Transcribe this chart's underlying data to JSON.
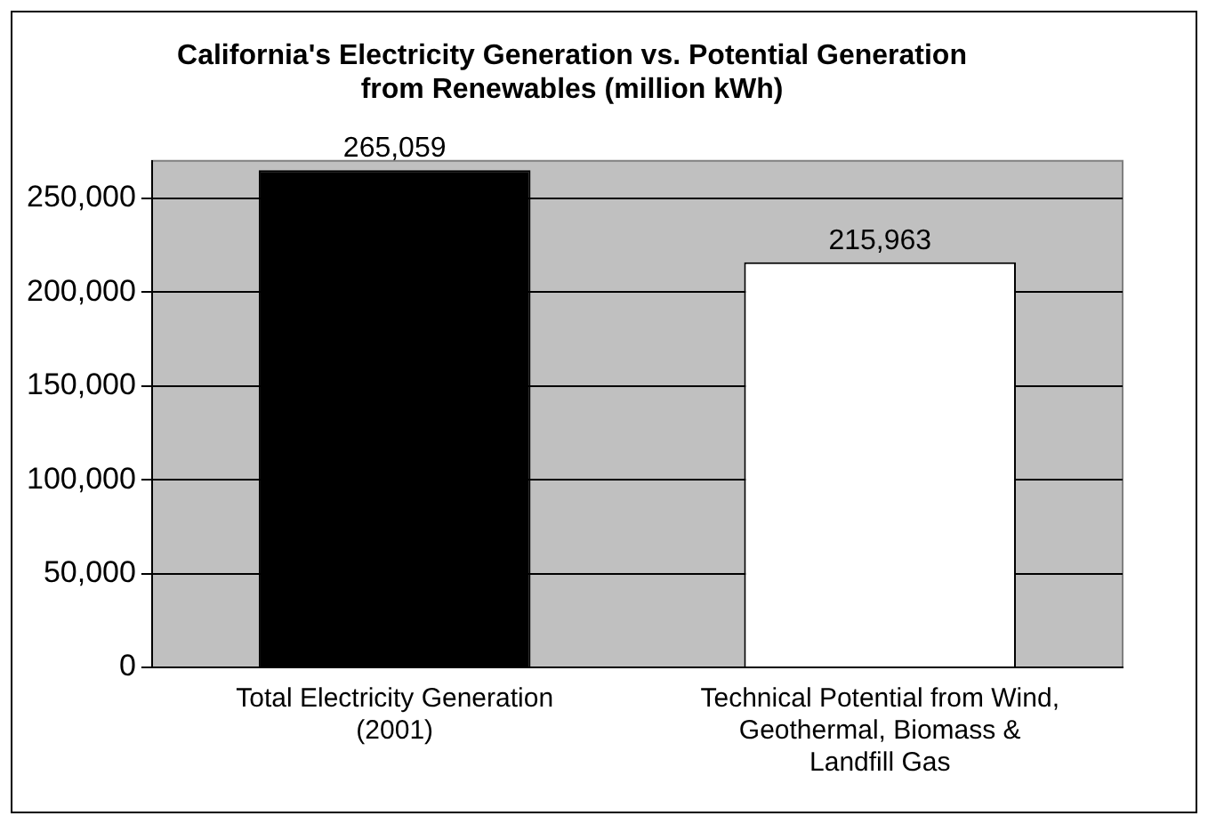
{
  "chart_data": {
    "type": "bar",
    "title": "California's Electricity Generation vs. Potential Generation from Renewables (million kWh)",
    "categories": [
      "Total Electricity Generation (2001)",
      "Technical Potential from Wind, Geothermal, Biomass & Landfill Gas"
    ],
    "values": [
      265059,
      215963
    ],
    "colors": [
      "#000000",
      "#ffffff"
    ],
    "value_labels": [
      "265,059",
      "215,963"
    ],
    "ylim": [
      0,
      270000
    ],
    "yticks": [
      0,
      {
        "value": 50000,
        "label": "50,000"
      },
      {
        "value": 100000,
        "label": "100,000"
      },
      {
        "value": 150000,
        "label": "150,000"
      },
      {
        "value": 200000,
        "label": "200,000"
      },
      {
        "value": 250000,
        "label": "250,000"
      }
    ],
    "grid": "y",
    "legend": false
  }
}
